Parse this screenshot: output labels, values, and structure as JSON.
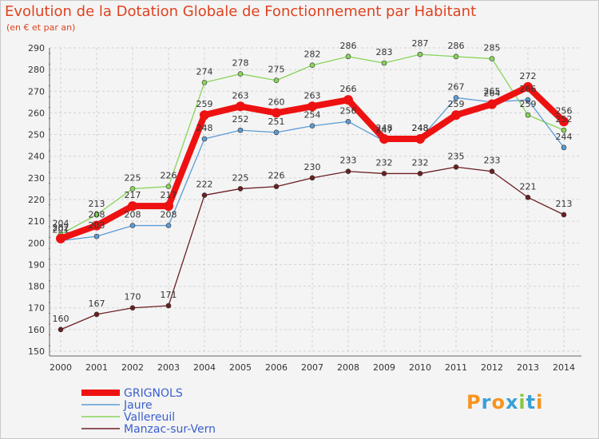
{
  "header": {
    "title": "Evolution de la Dotation Globale de Fonctionnement par Habitant",
    "subtitle": "(en € et par an)"
  },
  "brand": {
    "logo_text": "Proxiti"
  },
  "chart_data": {
    "type": "line",
    "title": "Evolution de la Dotation Globale de Fonctionnement par Habitant",
    "subtitle": "(en € et par an)",
    "xlabel": "",
    "ylabel": "",
    "ylim": [
      150,
      290
    ],
    "ytick_step": 10,
    "grid": true,
    "legend_position": "bottom-left",
    "categories": [
      "2000",
      "2001",
      "2002",
      "2003",
      "2004",
      "2005",
      "2006",
      "2007",
      "2008",
      "2009",
      "2010",
      "2011",
      "2012",
      "2013",
      "2014"
    ],
    "series": [
      {
        "name": "Vallereuil",
        "color": "#88d458",
        "values": [
          204,
          213,
          225,
          226,
          274,
          278,
          275,
          282,
          286,
          283,
          287,
          286,
          285,
          259,
          252
        ]
      },
      {
        "name": "Jaure",
        "color": "#5b9bd5",
        "values": [
          201,
          203,
          208,
          208,
          248,
          252,
          251,
          254,
          256,
          247,
          248,
          267,
          265,
          266,
          244
        ]
      },
      {
        "name": "Manzac-sur-Vern",
        "color": "#6b1f22",
        "values": [
          160,
          167,
          170,
          171,
          222,
          225,
          226,
          230,
          233,
          232,
          232,
          235,
          233,
          221,
          213
        ]
      },
      {
        "name": "GRIGNOLS",
        "color": "#ee1111",
        "values": [
          202,
          208,
          217,
          217,
          259,
          263,
          260,
          263,
          266,
          248,
          248,
          259,
          264,
          272,
          256
        ]
      }
    ],
    "legend_order": [
      "GRIGNOLS",
      "Jaure",
      "Vallereuil",
      "Manzac-sur-Vern"
    ]
  }
}
